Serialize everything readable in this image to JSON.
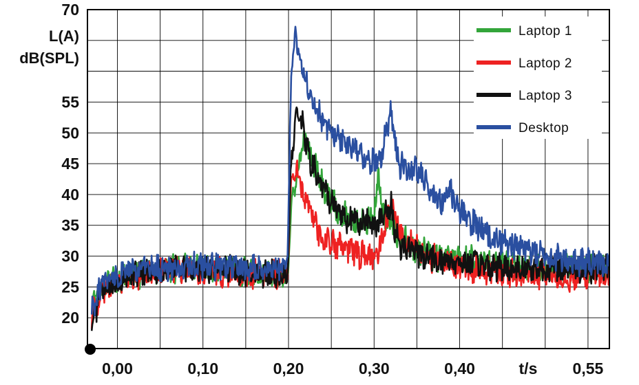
{
  "chart_data": {
    "type": "line",
    "title": "",
    "ylabel_lines": [
      "L(A)",
      "dB(SPL)"
    ],
    "xlabel": "t/s",
    "ylim": [
      15,
      70
    ],
    "xlim": [
      -0.035,
      0.575
    ],
    "y_ticks": [
      20,
      25,
      30,
      35,
      40,
      45,
      50,
      55,
      70
    ],
    "y_tick_labels": [
      "20",
      "25",
      "30",
      "35",
      "40",
      "45",
      "50",
      "55",
      "70"
    ],
    "x_ticks": [
      0.0,
      0.1,
      0.2,
      0.3,
      0.4,
      0.55
    ],
    "x_tick_labels": [
      "0,00",
      "0,10",
      "0,20",
      "0,30",
      "0,40",
      "0,55"
    ],
    "xlabel_at": 0.48,
    "grid": true,
    "legend_position": "top-right",
    "series": [
      {
        "name": "Laptop 1",
        "color": "#33a53a",
        "points": [
          [
            -0.03,
            21
          ],
          [
            -0.02,
            25
          ],
          [
            0.0,
            26
          ],
          [
            0.03,
            27
          ],
          [
            0.06,
            28
          ],
          [
            0.1,
            28
          ],
          [
            0.15,
            27.5
          ],
          [
            0.19,
            27
          ],
          [
            0.199,
            26
          ],
          [
            0.203,
            38
          ],
          [
            0.212,
            45
          ],
          [
            0.218,
            49
          ],
          [
            0.225,
            47
          ],
          [
            0.235,
            43
          ],
          [
            0.245,
            40
          ],
          [
            0.26,
            37
          ],
          [
            0.28,
            35.5
          ],
          [
            0.3,
            36
          ],
          [
            0.305,
            44
          ],
          [
            0.31,
            37
          ],
          [
            0.32,
            35
          ],
          [
            0.33,
            33
          ],
          [
            0.35,
            31
          ],
          [
            0.37,
            30
          ],
          [
            0.4,
            29.5
          ],
          [
            0.43,
            29
          ],
          [
            0.46,
            28.5
          ],
          [
            0.5,
            28
          ],
          [
            0.53,
            28
          ],
          [
            0.55,
            28
          ],
          [
            0.575,
            27.5
          ]
        ]
      },
      {
        "name": "Laptop 2",
        "color": "#ee2222",
        "points": [
          [
            -0.03,
            20
          ],
          [
            -0.02,
            24
          ],
          [
            0.0,
            26
          ],
          [
            0.03,
            27
          ],
          [
            0.06,
            28
          ],
          [
            0.1,
            27.5
          ],
          [
            0.15,
            27
          ],
          [
            0.19,
            27
          ],
          [
            0.199,
            27
          ],
          [
            0.203,
            43
          ],
          [
            0.21,
            44
          ],
          [
            0.218,
            40
          ],
          [
            0.225,
            37
          ],
          [
            0.235,
            34
          ],
          [
            0.25,
            32
          ],
          [
            0.27,
            31
          ],
          [
            0.29,
            30
          ],
          [
            0.305,
            30
          ],
          [
            0.315,
            36
          ],
          [
            0.32,
            38
          ],
          [
            0.325,
            36
          ],
          [
            0.33,
            34
          ],
          [
            0.35,
            31
          ],
          [
            0.37,
            29.5
          ],
          [
            0.4,
            28.5
          ],
          [
            0.43,
            27.5
          ],
          [
            0.46,
            27
          ],
          [
            0.5,
            27
          ],
          [
            0.53,
            26.5
          ],
          [
            0.55,
            27
          ],
          [
            0.575,
            26.5
          ]
        ]
      },
      {
        "name": "Laptop 3",
        "color": "#111111",
        "points": [
          [
            -0.03,
            19
          ],
          [
            -0.02,
            24
          ],
          [
            0.0,
            26
          ],
          [
            0.03,
            27.5
          ],
          [
            0.06,
            28
          ],
          [
            0.1,
            28
          ],
          [
            0.15,
            27.5
          ],
          [
            0.19,
            27
          ],
          [
            0.199,
            27
          ],
          [
            0.203,
            45
          ],
          [
            0.21,
            54
          ],
          [
            0.215,
            52
          ],
          [
            0.222,
            47
          ],
          [
            0.23,
            44
          ],
          [
            0.24,
            41
          ],
          [
            0.255,
            38
          ],
          [
            0.27,
            36
          ],
          [
            0.29,
            35.5
          ],
          [
            0.305,
            35.5
          ],
          [
            0.315,
            37
          ],
          [
            0.32,
            38
          ],
          [
            0.325,
            34
          ],
          [
            0.33,
            32
          ],
          [
            0.35,
            30.5
          ],
          [
            0.37,
            29.5
          ],
          [
            0.4,
            29
          ],
          [
            0.43,
            28.5
          ],
          [
            0.46,
            28
          ],
          [
            0.5,
            28
          ],
          [
            0.53,
            28
          ],
          [
            0.55,
            28
          ],
          [
            0.575,
            28
          ]
        ]
      },
      {
        "name": "Desktop",
        "color": "#2a4fa0",
        "points": [
          [
            -0.03,
            21
          ],
          [
            -0.02,
            25
          ],
          [
            0.0,
            27
          ],
          [
            0.03,
            28
          ],
          [
            0.06,
            28
          ],
          [
            0.1,
            28.5
          ],
          [
            0.15,
            28
          ],
          [
            0.19,
            28
          ],
          [
            0.199,
            29
          ],
          [
            0.203,
            60
          ],
          [
            0.208,
            66
          ],
          [
            0.213,
            62
          ],
          [
            0.22,
            58
          ],
          [
            0.23,
            54
          ],
          [
            0.245,
            51
          ],
          [
            0.26,
            49
          ],
          [
            0.28,
            47
          ],
          [
            0.3,
            45
          ],
          [
            0.31,
            47
          ],
          [
            0.315,
            51
          ],
          [
            0.32,
            53
          ],
          [
            0.325,
            48
          ],
          [
            0.33,
            45
          ],
          [
            0.34,
            44
          ],
          [
            0.35,
            44
          ],
          [
            0.36,
            42
          ],
          [
            0.37,
            40
          ],
          [
            0.38,
            39
          ],
          [
            0.39,
            40
          ],
          [
            0.4,
            37
          ],
          [
            0.42,
            35
          ],
          [
            0.44,
            33
          ],
          [
            0.46,
            32
          ],
          [
            0.48,
            31
          ],
          [
            0.5,
            30
          ],
          [
            0.52,
            29.5
          ],
          [
            0.55,
            29
          ],
          [
            0.575,
            28.5
          ]
        ]
      }
    ]
  }
}
